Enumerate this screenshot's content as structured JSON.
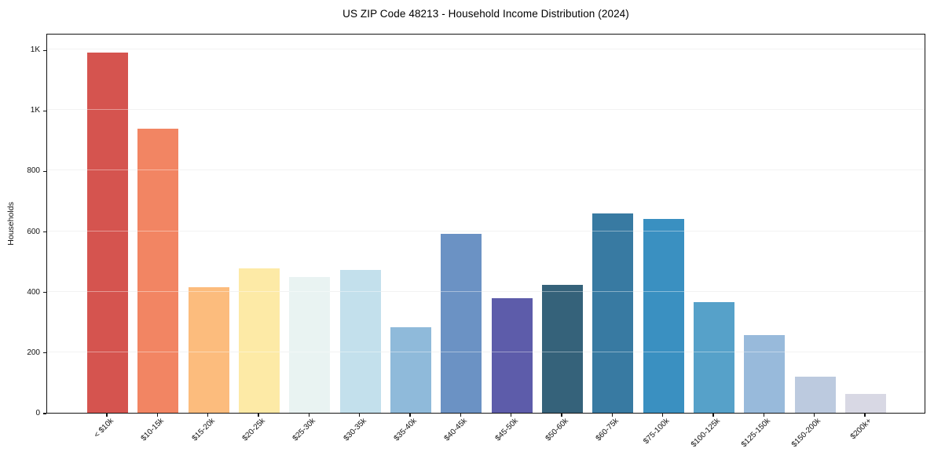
{
  "page": {
    "background": "#ffffff",
    "text_color": "#111111",
    "spine_color": "#141414",
    "grid_color": "#e9e9e9"
  },
  "chart_data": {
    "type": "bar",
    "title": "US ZIP Code 48213 - Household Income Distribution (2024)",
    "xlabel": "",
    "ylabel": "Households",
    "categories": [
      "< $10k",
      "$10-15k",
      "$15-20k",
      "$20-25k",
      "$25-30k",
      "$30-35k",
      "$35-40k",
      "$40-45k",
      "$45-50k",
      "$50-60k",
      "$60-75k",
      "$75-100k",
      "$100-125k",
      "$125-150k",
      "$150-200k",
      "$200k+"
    ],
    "values": [
      1190,
      938,
      415,
      478,
      448,
      472,
      283,
      592,
      380,
      423,
      660,
      640,
      365,
      257,
      119,
      62
    ],
    "bar_colors": [
      "#d5544f",
      "#f28563",
      "#fcbc7d",
      "#fdeaa6",
      "#e9f3f2",
      "#c3e0ec",
      "#8fbada",
      "#6b92c4",
      "#5d5caa",
      "#35627a",
      "#387aa2",
      "#3a90c1",
      "#56a1c9",
      "#98badb",
      "#bccadf",
      "#d8d8e4"
    ],
    "ylim": [
      0,
      1255
    ],
    "yticks": {
      "values": [
        0,
        200,
        400,
        600,
        800,
        1000,
        1200
      ],
      "labels": [
        "0",
        "200",
        "400",
        "600",
        "800",
        "1K",
        "1K"
      ]
    },
    "grid": "horizontal",
    "legend": "none"
  }
}
